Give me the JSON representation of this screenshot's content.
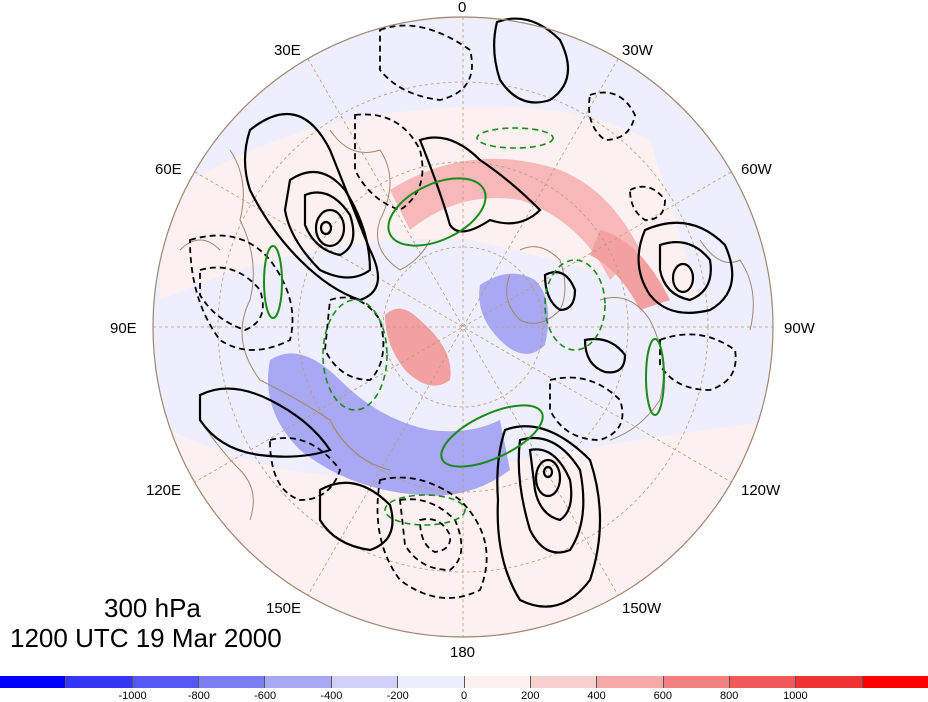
{
  "title": {
    "level": "300 hPa",
    "time": "1200 UTC 19 Mar 2000"
  },
  "longitude_labels": {
    "lon_0": "0",
    "lon_30w": "30W",
    "lon_60w": "60W",
    "lon_90w": "90W",
    "lon_120w": "120W",
    "lon_150w": "150W",
    "lon_180": "180",
    "lon_150e": "150E",
    "lon_120e": "120E",
    "lon_90e": "90E",
    "lon_60e": "60E",
    "lon_30e": "30E"
  },
  "colorbar": {
    "colors": [
      "#0000ff",
      "#3535f6",
      "#5656f3",
      "#7c7cf2",
      "#a8a8f5",
      "#d0d0fb",
      "#eeeefd",
      "#fdf0f0",
      "#f9d0d0",
      "#f6a9a9",
      "#f38080",
      "#f15858",
      "#ef3333",
      "#ff0000"
    ],
    "tick_labels": [
      "-1000",
      "-800",
      "-600",
      "-400",
      "-200",
      "0",
      "200",
      "400",
      "600",
      "800",
      "1000"
    ]
  },
  "map_colors": {
    "positive_contour": "#000000",
    "negative_contour": "#000000",
    "green_contour": "#1a8a1a",
    "coastline": "#a08670",
    "gridline": "#b89a78",
    "shade_blue_light": "#eeeefd",
    "shade_blue_mid": "#a8a8f5",
    "shade_red_light": "#fdf0f0",
    "shade_red_mid": "#f4a9a9"
  }
}
